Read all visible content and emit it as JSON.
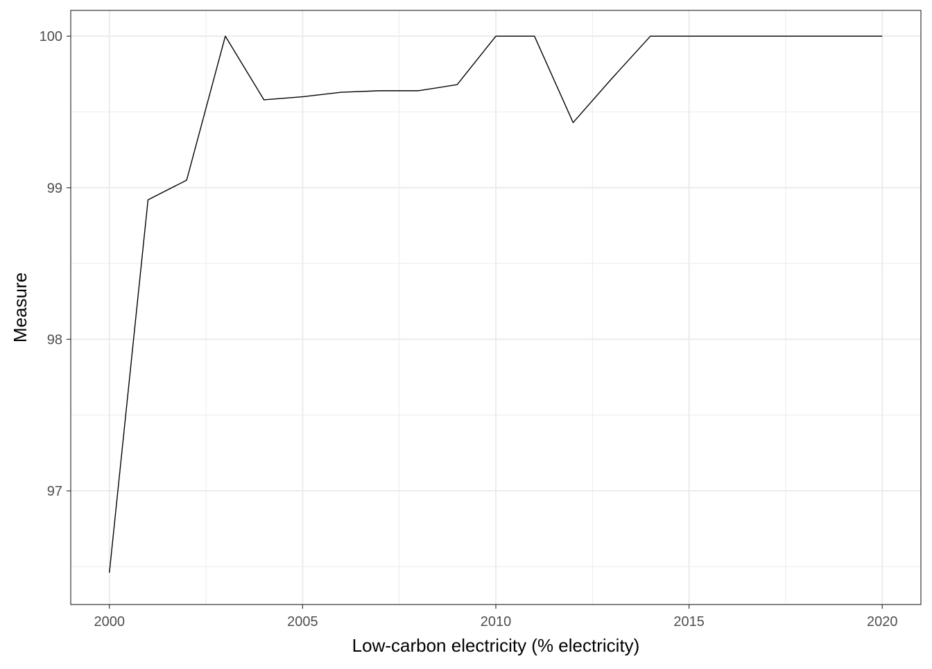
{
  "chart_data": {
    "type": "line",
    "title": "",
    "xlabel": "Low-carbon electricity (% electricity)",
    "ylabel": "Measure",
    "xlim": [
      1999.0,
      2021.0
    ],
    "ylim": [
      96.25,
      100.17
    ],
    "x_ticks": [
      2000,
      2005,
      2010,
      2015,
      2020
    ],
    "x_tick_labels": [
      "2000",
      "2005",
      "2010",
      "2015",
      "2020"
    ],
    "y_ticks": [
      97,
      98,
      99,
      100
    ],
    "y_tick_labels": [
      "97",
      "98",
      "99",
      "100"
    ],
    "x_minor_ticks": [
      2002.5,
      2007.5,
      2012.5,
      2017.5
    ],
    "y_minor_ticks": [
      96.5,
      97.5,
      98.5,
      99.5
    ],
    "grid": true,
    "legend": "none",
    "line_color": "#000000",
    "series": [
      {
        "x": [
          2000,
          2001,
          2002,
          2003,
          2004,
          2005,
          2006,
          2007,
          2008,
          2009,
          2010,
          2011,
          2012,
          2013,
          2014,
          2015,
          2016,
          2017,
          2018,
          2019,
          2020
        ],
        "values": [
          96.46,
          98.92,
          99.05,
          100.0,
          99.58,
          99.6,
          99.63,
          99.64,
          99.64,
          99.68,
          100.0,
          100.0,
          99.43,
          99.72,
          100.0,
          100.0,
          100.0,
          100.0,
          100.0,
          100.0,
          100.0
        ]
      }
    ]
  }
}
